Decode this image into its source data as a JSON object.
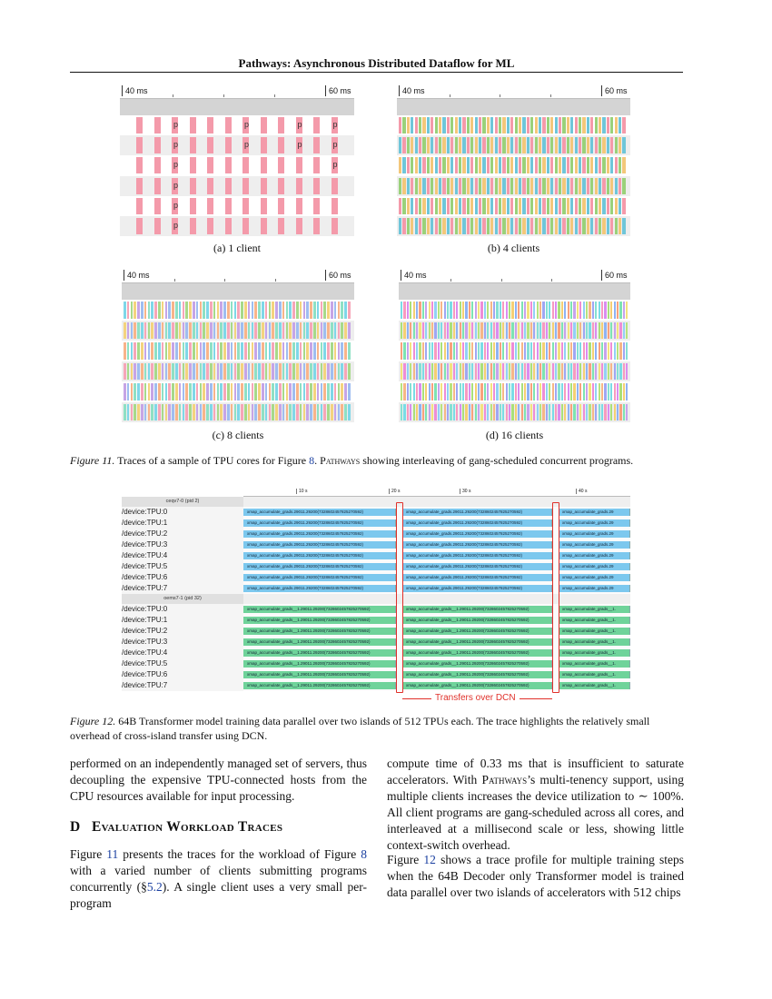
{
  "header": {
    "running_title": "Pathways: Asynchronous Distributed Dataflow for ML"
  },
  "figure11": {
    "tick_start": "40 ms",
    "tick_end": "60 ms",
    "panels": [
      {
        "subcaption": "(a) 1 client",
        "clients": 1
      },
      {
        "subcaption": "(b) 4 clients",
        "clients": 4
      },
      {
        "subcaption": "(c) 8 clients",
        "clients": 8
      },
      {
        "subcaption": "(d) 16 clients",
        "clients": 16
      }
    ],
    "p_label": "p",
    "caption_prefix": "Figure 11.",
    "caption_text_1": " Traces of a sample of TPU cores for Figure ",
    "caption_ref": "8",
    "caption_text_2": ". ",
    "caption_smallcaps": "Pathways",
    "caption_text_3": " showing interleaving of gang-scheduled concurrent programs."
  },
  "figure12": {
    "ticks": [
      "10 s",
      "20 s",
      "30 s",
      "40 s"
    ],
    "groups": [
      {
        "name": "ceqv7-0 (pid 2)",
        "color": "#7cc8ee",
        "box_labels": [
          "xmap_accumulate_grads.29011.29200(7328602457825270592)",
          "xmap_accumulate_grads.29011.29200(7328602457825270592)",
          "xmap_accumulate_grads.29"
        ],
        "rows": [
          "/device:TPU:0",
          "/device:TPU:1",
          "/device:TPU:2",
          "/device:TPU:3",
          "/device:TPU:4",
          "/device:TPU:5",
          "/device:TPU:6",
          "/device:TPU:7"
        ]
      },
      {
        "name": "oems7-1 (pid 32)",
        "color": "#6fd39a",
        "box_labels": [
          "xmap_accumulate_grads__1.29011.29200(7328602457825270592)",
          "xmap_accumulate_grads__1.29011.29200(7328602457825270592)",
          "xmap_accumulate_grads__1."
        ],
        "rows": [
          "/device:TPU:0",
          "/device:TPU:1",
          "/device:TPU:2",
          "/device:TPU:3",
          "/device:TPU:4",
          "/device:TPU:5",
          "/device:TPU:6",
          "/device:TPU:7"
        ]
      }
    ],
    "annotation": "Transfers over DCN",
    "annotation_color": "#e0302a",
    "caption_prefix": "Figure 12.",
    "caption_text": " 64B Transformer model training data parallel over two islands of 512 TPUs each. The trace highlights the relatively small overhead of cross-island transfer using DCN."
  },
  "body": {
    "left_para1": "performed on an independently managed set of servers, thus decoupling the expensive TPU-connected hosts from the CPU resources available for input processing.",
    "section_letter": "D",
    "section_title": "Evaluation Workload Traces",
    "left_para2_a": "Figure ",
    "left_para2_ref1": "11",
    "left_para2_b": " presents the traces for the workload of Figure ",
    "left_para2_ref2": "8",
    "left_para2_c": " with a varied number of clients submitting programs concurrently (§",
    "left_para2_ref3": "5.2",
    "left_para2_d": "). A single client uses a very small per-program",
    "right_para1_a": "compute time of 0.33 ms that is insufficient to saturate accelerators. With ",
    "right_para1_sc": "Pathways",
    "right_para1_b": "’s multi-tenency support, using multiple clients increases the device utilization to ∼ 100%. All client programs are gang-scheduled across all cores, and interleaved at a millisecond scale or less, showing little context-switch overhead.",
    "right_para2_a": "Figure ",
    "right_para2_ref": "12",
    "right_para2_b": " shows a trace profile for multiple training steps when the 64B Decoder only Transformer model is trained data parallel over two islands of accelerators with 512 chips"
  },
  "colors": {
    "pink": "#f49aaa",
    "palette4": [
      "#f49aaa",
      "#9ad17a",
      "#f3c77a",
      "#6fc6d9"
    ],
    "palette8": [
      "#7fd7e8",
      "#f6a6b8",
      "#a7d98a",
      "#f4d37e",
      "#c6a5e6",
      "#9fbdf0",
      "#f8b48a",
      "#8fe0c4"
    ],
    "palette16": [
      "#79dce6",
      "#f79ac0",
      "#d98df0",
      "#a9e07a",
      "#f5cf73",
      "#8fb2f3",
      "#f8a17c",
      "#7de3b2",
      "#c6a3ec",
      "#f4e27d",
      "#ee8cd6",
      "#92d0f6",
      "#b7e37d",
      "#f6b686",
      "#9fa6f3",
      "#86e0d2"
    ]
  }
}
